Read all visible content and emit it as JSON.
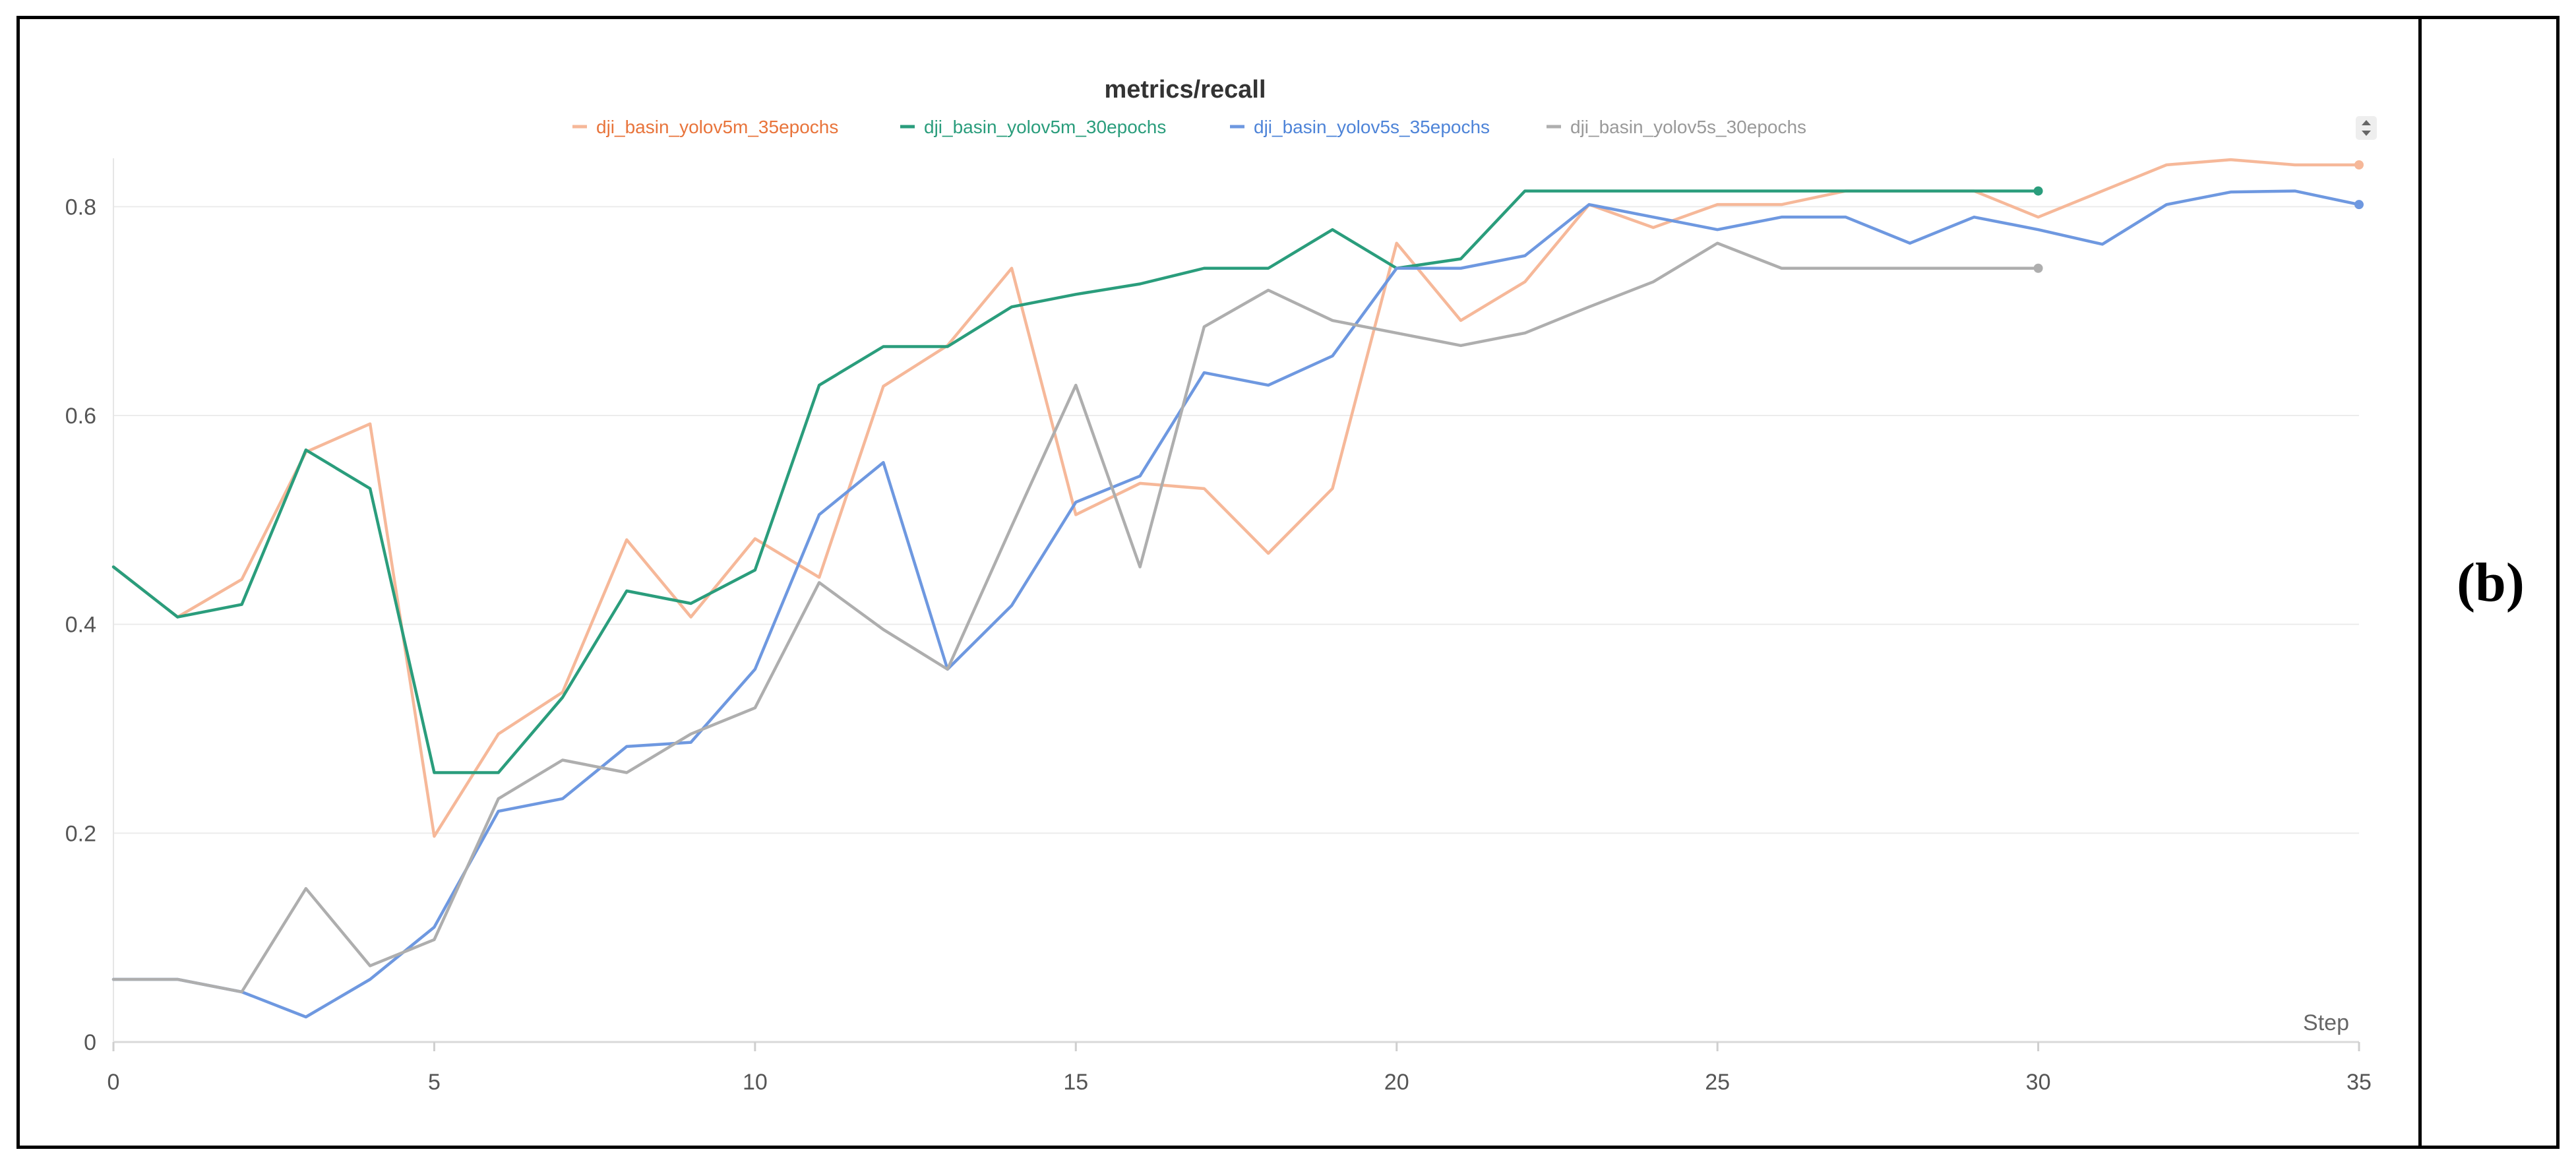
{
  "panel_label": "(b)",
  "chart_data": {
    "type": "line",
    "title": "metrics/recall",
    "xlabel": "Step",
    "ylabel": "",
    "xlim": [
      0,
      35
    ],
    "ylim": [
      0,
      0.84
    ],
    "x_ticks": [
      0,
      5,
      10,
      15,
      20,
      25,
      30,
      35
    ],
    "y_ticks": [
      0,
      0.2,
      0.4,
      0.6,
      0.8
    ],
    "grid": true,
    "legend_position": "top-center",
    "series": [
      {
        "name": "dji_basin_yolov5m_35epochs",
        "color": "#f6b899",
        "legend_color": "#e8743b",
        "end_marker": true,
        "x": [
          0,
          1,
          2,
          3,
          4,
          5,
          6,
          7,
          8,
          9,
          10,
          11,
          12,
          13,
          14,
          15,
          16,
          17,
          18,
          19,
          20,
          21,
          22,
          23,
          24,
          25,
          26,
          27,
          28,
          29,
          30,
          31,
          32,
          33,
          34,
          35
        ],
        "y": [
          0.455,
          0.407,
          0.443,
          0.565,
          0.592,
          0.197,
          0.295,
          0.335,
          0.481,
          0.407,
          0.482,
          0.445,
          0.628,
          0.667,
          0.741,
          0.505,
          0.535,
          0.53,
          0.468,
          0.53,
          0.765,
          0.691,
          0.728,
          0.802,
          0.78,
          0.802,
          0.802,
          0.815,
          0.815,
          0.815,
          0.79,
          0.815,
          0.84,
          0.845,
          0.84,
          0.84
        ]
      },
      {
        "name": "dji_basin_yolov5m_30epochs",
        "color": "#2a9d7c",
        "legend_color": "#2a9d7c",
        "end_marker": true,
        "x": [
          0,
          1,
          2,
          3,
          4,
          5,
          6,
          7,
          8,
          9,
          10,
          11,
          12,
          13,
          14,
          15,
          16,
          17,
          18,
          19,
          20,
          21,
          22,
          23,
          24,
          25,
          26,
          27,
          28,
          29,
          30
        ],
        "y": [
          0.455,
          0.407,
          0.419,
          0.567,
          0.53,
          0.258,
          0.258,
          0.33,
          0.432,
          0.42,
          0.452,
          0.629,
          0.666,
          0.666,
          0.704,
          0.716,
          0.726,
          0.741,
          0.741,
          0.778,
          0.741,
          0.75,
          0.815,
          0.815,
          0.815,
          0.815,
          0.815,
          0.815,
          0.815,
          0.815,
          0.815
        ]
      },
      {
        "name": "dji_basin_yolov5s_35epochs",
        "color": "#6e98e0",
        "legend_color": "#4e84d8",
        "end_marker": true,
        "x": [
          0,
          1,
          2,
          3,
          4,
          5,
          6,
          7,
          8,
          9,
          10,
          11,
          12,
          13,
          14,
          15,
          16,
          17,
          18,
          19,
          20,
          21,
          22,
          23,
          24,
          25,
          26,
          27,
          28,
          29,
          30,
          31,
          32,
          33,
          34,
          35
        ],
        "y": [
          0.06,
          0.06,
          0.048,
          0.024,
          0.06,
          0.11,
          0.221,
          0.233,
          0.283,
          0.287,
          0.357,
          0.505,
          0.555,
          0.357,
          0.418,
          0.517,
          0.542,
          0.641,
          0.629,
          0.657,
          0.741,
          0.741,
          0.753,
          0.802,
          0.79,
          0.778,
          0.79,
          0.79,
          0.765,
          0.79,
          0.778,
          0.764,
          0.802,
          0.814,
          0.815,
          0.802
        ]
      },
      {
        "name": "dji_basin_yolov5s_30epochs",
        "color": "#aeaeae",
        "legend_color": "#999999",
        "end_marker": true,
        "x": [
          0,
          1,
          2,
          3,
          4,
          5,
          6,
          7,
          8,
          9,
          10,
          11,
          12,
          13,
          14,
          15,
          16,
          17,
          18,
          19,
          20,
          21,
          22,
          23,
          24,
          25,
          26,
          27,
          28,
          29,
          30
        ],
        "y": [
          0.06,
          0.06,
          0.048,
          0.147,
          0.073,
          0.098,
          0.233,
          0.27,
          0.258,
          0.295,
          0.32,
          0.44,
          0.395,
          0.357,
          0.494,
          0.629,
          0.455,
          0.685,
          0.72,
          0.691,
          0.679,
          0.667,
          0.679,
          0.704,
          0.728,
          0.765,
          0.741,
          0.741,
          0.741,
          0.741,
          0.741
        ]
      }
    ]
  }
}
